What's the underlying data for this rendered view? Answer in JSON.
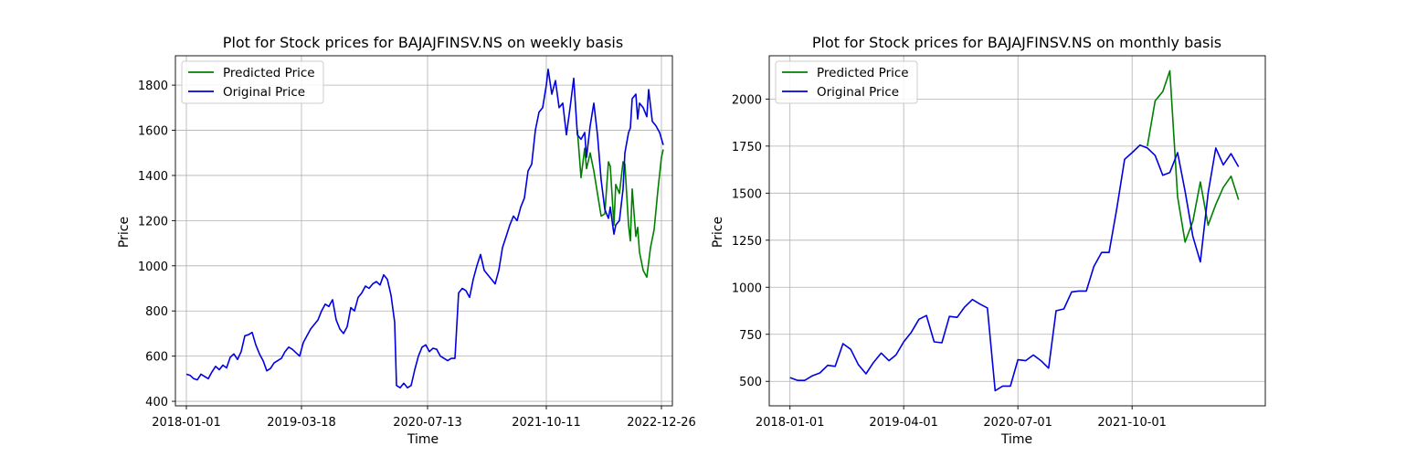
{
  "chart_data": [
    {
      "type": "line",
      "title": "Plot for Stock prices for BAJAJFINSV.NS on weekly basis",
      "xlabel": "Time",
      "ylabel": "Price",
      "x_ticks": [
        "2018-01-01",
        "2019-03-18",
        "2020-07-13",
        "2021-10-11",
        "2022-12-26"
      ],
      "y_ticks": [
        400,
        600,
        800,
        1000,
        1200,
        1400,
        1600,
        1800
      ],
      "xlim": [
        "2017-11-20",
        "2023-02-06"
      ],
      "ylim": [
        380,
        1930
      ],
      "grid": true,
      "legend": "top-left",
      "series": [
        {
          "name": "Predicted Price",
          "color": "#008000",
          "points": [
            [
              "2022-02-07",
              1600
            ],
            [
              "2022-02-21",
              1390
            ],
            [
              "2022-03-07",
              1520
            ],
            [
              "2022-03-14",
              1430
            ],
            [
              "2022-03-28",
              1500
            ],
            [
              "2022-04-11",
              1420
            ],
            [
              "2022-04-25",
              1320
            ],
            [
              "2022-05-09",
              1220
            ],
            [
              "2022-05-23",
              1230
            ],
            [
              "2022-06-06",
              1460
            ],
            [
              "2022-06-13",
              1440
            ],
            [
              "2022-06-27",
              1180
            ],
            [
              "2022-07-04",
              1360
            ],
            [
              "2022-07-18",
              1320
            ],
            [
              "2022-08-01",
              1460
            ],
            [
              "2022-08-08",
              1450
            ],
            [
              "2022-08-22",
              1180
            ],
            [
              "2022-08-29",
              1110
            ],
            [
              "2022-09-05",
              1340
            ],
            [
              "2022-09-19",
              1130
            ],
            [
              "2022-09-26",
              1170
            ],
            [
              "2022-10-03",
              1060
            ],
            [
              "2022-10-17",
              980
            ],
            [
              "2022-10-31",
              950
            ],
            [
              "2022-11-14",
              1080
            ],
            [
              "2022-11-28",
              1160
            ],
            [
              "2022-12-12",
              1330
            ],
            [
              "2022-12-26",
              1480
            ],
            [
              "2023-01-02",
              1515
            ]
          ]
        },
        {
          "name": "Original Price",
          "color": "#0000e0",
          "points": [
            [
              "2018-01-01",
              520
            ],
            [
              "2018-01-15",
              515
            ],
            [
              "2018-01-29",
              500
            ],
            [
              "2018-02-12",
              495
            ],
            [
              "2018-02-26",
              520
            ],
            [
              "2018-03-12",
              510
            ],
            [
              "2018-03-26",
              500
            ],
            [
              "2018-04-09",
              530
            ],
            [
              "2018-04-23",
              555
            ],
            [
              "2018-05-07",
              540
            ],
            [
              "2018-05-21",
              560
            ],
            [
              "2018-06-04",
              548
            ],
            [
              "2018-06-18",
              595
            ],
            [
              "2018-07-02",
              610
            ],
            [
              "2018-07-16",
              585
            ],
            [
              "2018-07-30",
              620
            ],
            [
              "2018-08-13",
              690
            ],
            [
              "2018-08-27",
              695
            ],
            [
              "2018-09-10",
              705
            ],
            [
              "2018-09-24",
              650
            ],
            [
              "2018-10-08",
              610
            ],
            [
              "2018-10-22",
              580
            ],
            [
              "2018-11-05",
              535
            ],
            [
              "2018-11-19",
              545
            ],
            [
              "2018-12-03",
              570
            ],
            [
              "2018-12-17",
              580
            ],
            [
              "2018-12-31",
              590
            ],
            [
              "2019-01-14",
              620
            ],
            [
              "2019-01-28",
              640
            ],
            [
              "2019-02-11",
              630
            ],
            [
              "2019-02-25",
              615
            ],
            [
              "2019-03-11",
              600
            ],
            [
              "2019-03-25",
              660
            ],
            [
              "2019-04-08",
              690
            ],
            [
              "2019-04-22",
              720
            ],
            [
              "2019-05-06",
              740
            ],
            [
              "2019-05-20",
              760
            ],
            [
              "2019-06-03",
              800
            ],
            [
              "2019-06-17",
              830
            ],
            [
              "2019-07-01",
              820
            ],
            [
              "2019-07-15",
              850
            ],
            [
              "2019-07-29",
              760
            ],
            [
              "2019-08-12",
              720
            ],
            [
              "2019-08-26",
              700
            ],
            [
              "2019-09-09",
              730
            ],
            [
              "2019-09-23",
              815
            ],
            [
              "2019-10-07",
              800
            ],
            [
              "2019-10-21",
              860
            ],
            [
              "2019-11-04",
              880
            ],
            [
              "2019-11-18",
              910
            ],
            [
              "2019-12-02",
              900
            ],
            [
              "2019-12-16",
              920
            ],
            [
              "2019-12-30",
              930
            ],
            [
              "2020-01-13",
              915
            ],
            [
              "2020-01-27",
              960
            ],
            [
              "2020-02-10",
              940
            ],
            [
              "2020-02-24",
              870
            ],
            [
              "2020-03-09",
              750
            ],
            [
              "2020-03-16",
              470
            ],
            [
              "2020-03-30",
              460
            ],
            [
              "2020-04-13",
              480
            ],
            [
              "2020-04-27",
              460
            ],
            [
              "2020-05-11",
              470
            ],
            [
              "2020-05-25",
              540
            ],
            [
              "2020-06-08",
              600
            ],
            [
              "2020-06-22",
              640
            ],
            [
              "2020-07-06",
              650
            ],
            [
              "2020-07-20",
              620
            ],
            [
              "2020-08-03",
              635
            ],
            [
              "2020-08-17",
              630
            ],
            [
              "2020-08-31",
              600
            ],
            [
              "2020-09-14",
              590
            ],
            [
              "2020-09-28",
              580
            ],
            [
              "2020-10-12",
              590
            ],
            [
              "2020-10-26",
              590
            ],
            [
              "2020-11-09",
              880
            ],
            [
              "2020-11-23",
              900
            ],
            [
              "2020-12-07",
              890
            ],
            [
              "2020-12-21",
              860
            ],
            [
              "2021-01-04",
              940
            ],
            [
              "2021-01-18",
              1000
            ],
            [
              "2021-02-01",
              1050
            ],
            [
              "2021-02-15",
              980
            ],
            [
              "2021-03-01",
              960
            ],
            [
              "2021-03-15",
              940
            ],
            [
              "2021-03-29",
              920
            ],
            [
              "2021-04-12",
              980
            ],
            [
              "2021-04-26",
              1080
            ],
            [
              "2021-05-10",
              1130
            ],
            [
              "2021-05-24",
              1180
            ],
            [
              "2021-06-07",
              1220
            ],
            [
              "2021-06-21",
              1200
            ],
            [
              "2021-07-05",
              1260
            ],
            [
              "2021-07-19",
              1300
            ],
            [
              "2021-08-02",
              1420
            ],
            [
              "2021-08-16",
              1450
            ],
            [
              "2021-08-30",
              1600
            ],
            [
              "2021-09-13",
              1680
            ],
            [
              "2021-09-27",
              1700
            ],
            [
              "2021-10-11",
              1800
            ],
            [
              "2021-10-18",
              1870
            ],
            [
              "2021-11-01",
              1760
            ],
            [
              "2021-11-15",
              1820
            ],
            [
              "2021-11-29",
              1700
            ],
            [
              "2021-12-13",
              1720
            ],
            [
              "2021-12-27",
              1580
            ],
            [
              "2022-01-10",
              1700
            ],
            [
              "2022-01-24",
              1830
            ],
            [
              "2022-02-07",
              1580
            ],
            [
              "2022-02-21",
              1560
            ],
            [
              "2022-03-07",
              1590
            ],
            [
              "2022-03-14",
              1480
            ],
            [
              "2022-03-28",
              1620
            ],
            [
              "2022-04-11",
              1720
            ],
            [
              "2022-04-25",
              1580
            ],
            [
              "2022-05-09",
              1380
            ],
            [
              "2022-05-23",
              1250
            ],
            [
              "2022-06-06",
              1210
            ],
            [
              "2022-06-13",
              1260
            ],
            [
              "2022-06-27",
              1140
            ],
            [
              "2022-07-04",
              1180
            ],
            [
              "2022-07-18",
              1200
            ],
            [
              "2022-08-01",
              1340
            ],
            [
              "2022-08-08",
              1500
            ],
            [
              "2022-08-22",
              1590
            ],
            [
              "2022-08-29",
              1610
            ],
            [
              "2022-09-05",
              1740
            ],
            [
              "2022-09-19",
              1760
            ],
            [
              "2022-09-26",
              1650
            ],
            [
              "2022-10-03",
              1720
            ],
            [
              "2022-10-17",
              1700
            ],
            [
              "2022-10-31",
              1660
            ],
            [
              "2022-11-07",
              1780
            ],
            [
              "2022-11-21",
              1640
            ],
            [
              "2022-12-05",
              1620
            ],
            [
              "2022-12-19",
              1590
            ],
            [
              "2023-01-02",
              1535
            ]
          ]
        }
      ]
    },
    {
      "type": "line",
      "title": "Plot for Stock prices for BAJAJFINSV.NS on monthly basis",
      "xlabel": "Time",
      "ylabel": "Price",
      "x_ticks": [
        "2018-01-01",
        "2019-04-01",
        "2020-07-01",
        "2021-10-01"
      ],
      "y_ticks": [
        500,
        750,
        1000,
        1250,
        1500,
        1750,
        2000
      ],
      "xlim": [
        "2017-10-10",
        "2023-03-18"
      ],
      "ylim": [
        370,
        2230
      ],
      "grid": true,
      "legend": "top-left",
      "series": [
        {
          "name": "Predicted Price",
          "color": "#008000",
          "points": [
            [
              "2021-12-01",
              1750
            ],
            [
              "2022-01-01",
              1990
            ],
            [
              "2022-02-01",
              2040
            ],
            [
              "2022-03-01",
              2150
            ],
            [
              "2022-04-01",
              1480
            ],
            [
              "2022-05-01",
              1240
            ],
            [
              "2022-06-01",
              1350
            ],
            [
              "2022-07-01",
              1560
            ],
            [
              "2022-08-01",
              1330
            ],
            [
              "2022-09-01",
              1440
            ],
            [
              "2022-10-01",
              1530
            ],
            [
              "2022-11-01",
              1590
            ],
            [
              "2022-12-01",
              1465
            ]
          ]
        },
        {
          "name": "Original Price",
          "color": "#0000e0",
          "points": [
            [
              "2018-01-01",
              520
            ],
            [
              "2018-02-01",
              505
            ],
            [
              "2018-03-01",
              505
            ],
            [
              "2018-04-01",
              530
            ],
            [
              "2018-05-01",
              545
            ],
            [
              "2018-06-01",
              585
            ],
            [
              "2018-07-01",
              580
            ],
            [
              "2018-08-01",
              700
            ],
            [
              "2018-09-01",
              670
            ],
            [
              "2018-10-01",
              590
            ],
            [
              "2018-11-01",
              540
            ],
            [
              "2018-12-01",
              600
            ],
            [
              "2019-01-01",
              650
            ],
            [
              "2019-02-01",
              610
            ],
            [
              "2019-03-01",
              640
            ],
            [
              "2019-04-01",
              710
            ],
            [
              "2019-05-01",
              760
            ],
            [
              "2019-06-01",
              830
            ],
            [
              "2019-07-01",
              850
            ],
            [
              "2019-08-01",
              710
            ],
            [
              "2019-09-01",
              705
            ],
            [
              "2019-10-01",
              845
            ],
            [
              "2019-11-01",
              840
            ],
            [
              "2019-12-01",
              895
            ],
            [
              "2020-01-01",
              935
            ],
            [
              "2020-02-01",
              910
            ],
            [
              "2020-03-01",
              890
            ],
            [
              "2020-04-01",
              450
            ],
            [
              "2020-05-01",
              475
            ],
            [
              "2020-06-01",
              475
            ],
            [
              "2020-07-01",
              615
            ],
            [
              "2020-08-01",
              610
            ],
            [
              "2020-09-01",
              640
            ],
            [
              "2020-10-01",
              610
            ],
            [
              "2020-11-01",
              570
            ],
            [
              "2020-12-01",
              875
            ],
            [
              "2021-01-01",
              885
            ],
            [
              "2021-02-01",
              975
            ],
            [
              "2021-03-01",
              980
            ],
            [
              "2021-04-01",
              980
            ],
            [
              "2021-05-01",
              1110
            ],
            [
              "2021-06-01",
              1185
            ],
            [
              "2021-07-01",
              1185
            ],
            [
              "2021-08-01",
              1420
            ],
            [
              "2021-09-01",
              1680
            ],
            [
              "2021-10-01",
              1715
            ],
            [
              "2021-11-01",
              1755
            ],
            [
              "2021-12-01",
              1740
            ],
            [
              "2022-01-01",
              1700
            ],
            [
              "2022-02-01",
              1595
            ],
            [
              "2022-03-01",
              1610
            ],
            [
              "2022-04-01",
              1715
            ],
            [
              "2022-05-01",
              1510
            ],
            [
              "2022-06-01",
              1270
            ],
            [
              "2022-07-01",
              1135
            ],
            [
              "2022-08-01",
              1500
            ],
            [
              "2022-09-01",
              1740
            ],
            [
              "2022-10-01",
              1650
            ],
            [
              "2022-11-01",
              1710
            ],
            [
              "2022-12-01",
              1640
            ]
          ]
        }
      ]
    }
  ]
}
